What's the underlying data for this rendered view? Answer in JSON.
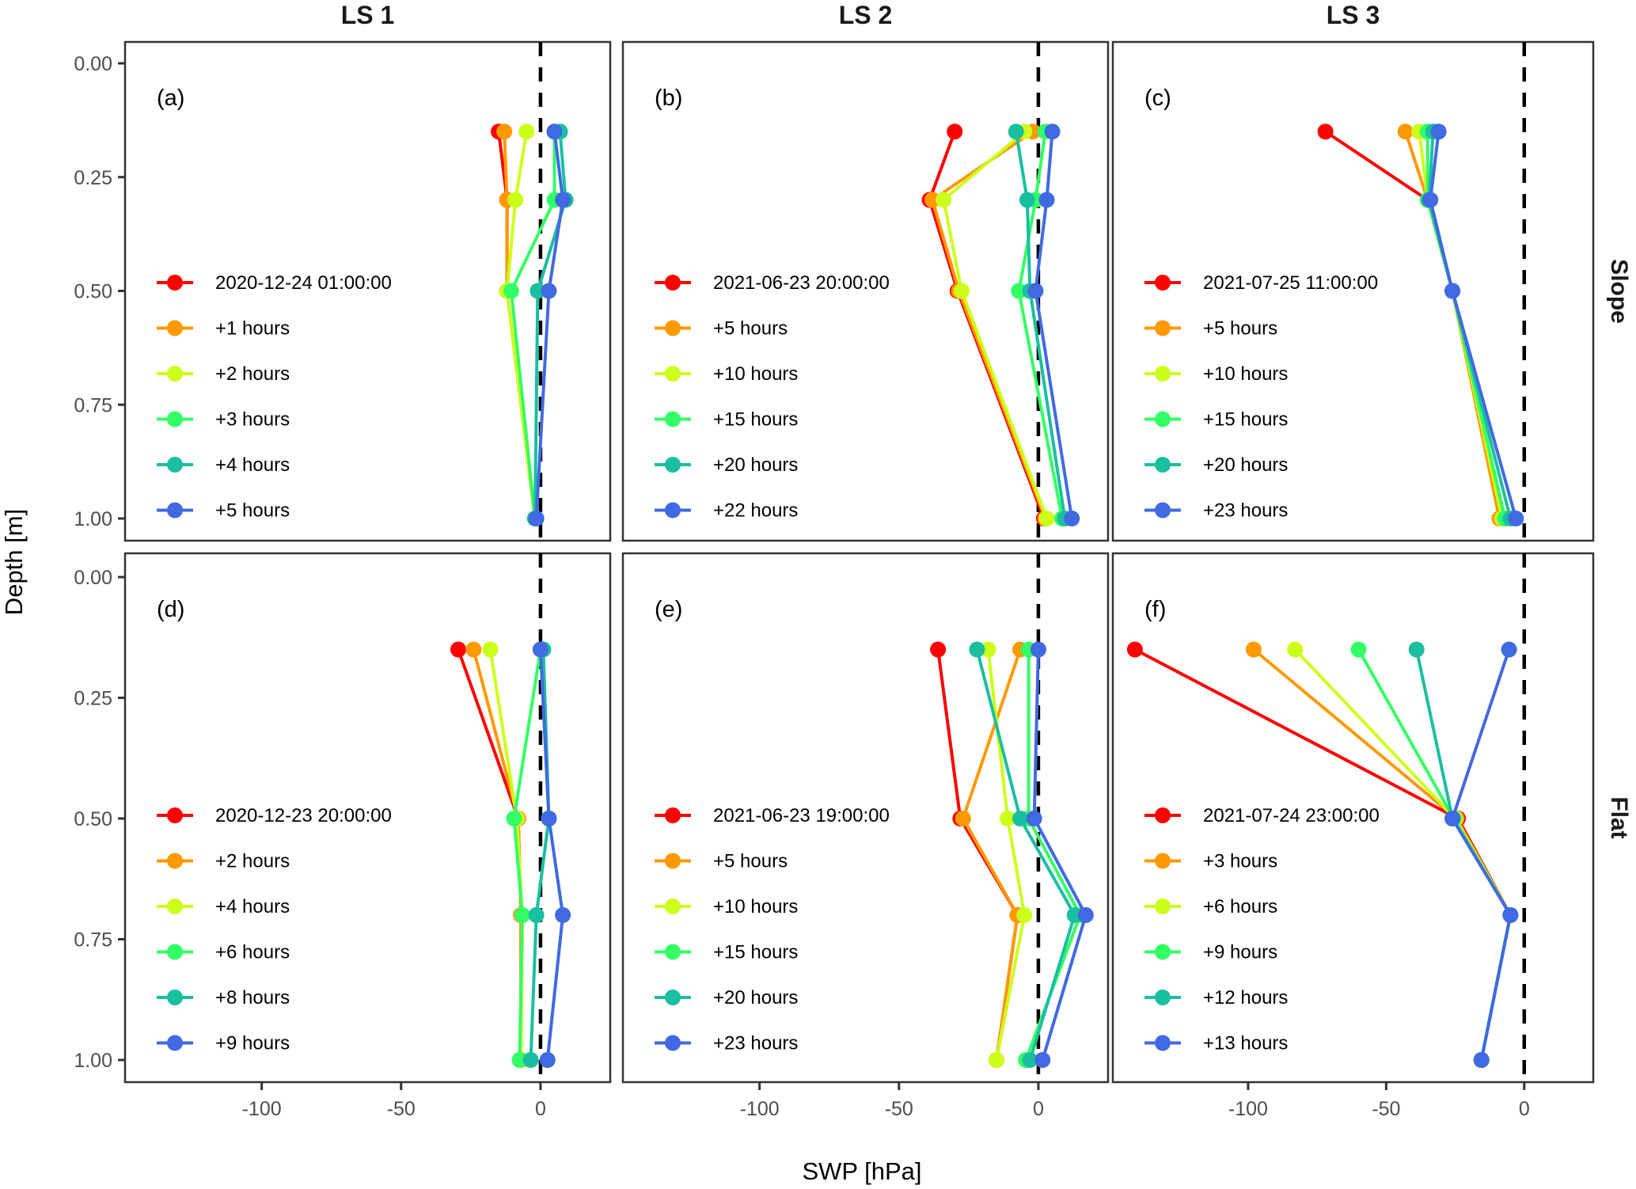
{
  "chart_data": {
    "type": "line",
    "description": "Soil water potential depth profiles, faceted by site (columns) and position (rows)",
    "xlabel": "SWP [hPa]",
    "ylabel": "Depth [m]",
    "xlim": [
      -149,
      25
    ],
    "ylim": [
      1.05,
      -0.05
    ],
    "y_reversed": true,
    "x_ticks": [
      -100,
      -50,
      0
    ],
    "x_tick_labels": [
      "-100",
      "-50",
      "0"
    ],
    "y_ticks": [
      0.0,
      0.25,
      0.5,
      0.75,
      1.0
    ],
    "y_tick_labels": [
      "0.00",
      "0.25",
      "0.50",
      "0.75",
      "1.00"
    ],
    "reference_line": {
      "x": 0,
      "style": "dashed",
      "color": "#000000"
    },
    "grid": false,
    "legend_placement": "inside-left",
    "series_colors": [
      "#FF0000",
      "#FF9900",
      "#CCFF1A",
      "#33FF66",
      "#1ABFA0",
      "#4169E1"
    ],
    "column_titles": [
      "LS 1",
      "LS 2",
      "LS 3"
    ],
    "row_titles": [
      "Slope",
      "Flat"
    ],
    "panels": [
      {
        "tag": "(a)",
        "column": "LS 1",
        "row": "Slope",
        "depths": [
          0.15,
          0.3,
          0.5,
          1.0
        ],
        "series": [
          {
            "name": "2020-12-24 01:00:00",
            "values": [
              -15,
              -12,
              -12,
              -2
            ]
          },
          {
            "name": "+1 hours",
            "values": [
              -13,
              -12,
              -12,
              -2
            ]
          },
          {
            "name": "+2 hours",
            "values": [
              -5,
              -9,
              -12,
              -2
            ]
          },
          {
            "name": "+3 hours",
            "values": [
              5,
              5,
              -10.5,
              -2
            ]
          },
          {
            "name": "+4 hours",
            "values": [
              7,
              9,
              -1,
              -2
            ]
          },
          {
            "name": "+5 hours",
            "values": [
              5,
              8,
              3,
              -1.5
            ]
          }
        ]
      },
      {
        "tag": "(b)",
        "column": "LS 2",
        "row": "Slope",
        "depths": [
          0.15,
          0.3,
          0.5,
          1.0
        ],
        "series": [
          {
            "name": "2021-06-23 20:00:00",
            "values": [
              -30,
              -39,
              -29,
              2
            ]
          },
          {
            "name": "+5 hours",
            "values": [
              -2,
              -38,
              -28.5,
              2.5
            ]
          },
          {
            "name": "+10 hours",
            "values": [
              -5,
              -34,
              -27.5,
              3
            ]
          },
          {
            "name": "+15 hours",
            "values": [
              2.5,
              -1,
              -7,
              8.5
            ]
          },
          {
            "name": "+20 hours",
            "values": [
              -8,
              -4,
              -3,
              9.5
            ]
          },
          {
            "name": "+22 hours",
            "values": [
              5,
              3,
              -1,
              12
            ]
          }
        ]
      },
      {
        "tag": "(c)",
        "column": "LS 3",
        "row": "Slope",
        "depths": [
          0.15,
          0.3,
          0.5,
          1.0
        ],
        "series": [
          {
            "name": "2021-07-25 11:00:00",
            "values": [
              -72,
              -35,
              -26,
              -7
            ]
          },
          {
            "name": "+5 hours",
            "values": [
              -43,
              -35,
              -26,
              -9
            ]
          },
          {
            "name": "+10 hours",
            "values": [
              -38,
              -35,
              -26,
              -8
            ]
          },
          {
            "name": "+15 hours",
            "values": [
              -35,
              -35,
              -26,
              -7
            ]
          },
          {
            "name": "+20 hours",
            "values": [
              -33,
              -34.5,
              -26,
              -5
            ]
          },
          {
            "name": "+23 hours",
            "values": [
              -31,
              -34,
              -26,
              -3
            ]
          }
        ]
      },
      {
        "tag": "(d)",
        "column": "LS 1",
        "row": "Flat",
        "depths": [
          0.15,
          0.5,
          0.7,
          1.0
        ],
        "series": [
          {
            "name": "2020-12-23 20:00:00",
            "values": [
              -29.5,
              -8,
              -7,
              -7
            ]
          },
          {
            "name": "+2 hours",
            "values": [
              -24,
              -8,
              -7,
              -7
            ]
          },
          {
            "name": "+4 hours",
            "values": [
              -18,
              -8.5,
              -6.5,
              -7
            ]
          },
          {
            "name": "+6 hours",
            "values": [
              0,
              -9.5,
              -6.5,
              -7.5
            ]
          },
          {
            "name": "+8 hours",
            "values": [
              1,
              3,
              -1.5,
              -3.5
            ]
          },
          {
            "name": "+9 hours",
            "values": [
              0,
              3,
              8,
              2.5
            ]
          }
        ]
      },
      {
        "tag": "(e)",
        "column": "LS 2",
        "row": "Flat",
        "depths": [
          0.15,
          0.5,
          0.7,
          1.0
        ],
        "series": [
          {
            "name": "2021-06-23 19:00:00",
            "values": [
              -36,
              -28,
              -7.5,
              -15
            ]
          },
          {
            "name": "+5 hours",
            "values": [
              -6.5,
              -27,
              -7.5,
              -15
            ]
          },
          {
            "name": "+10 hours",
            "values": [
              -18,
              -11,
              -5,
              -15
            ]
          },
          {
            "name": "+15 hours",
            "values": [
              -3.5,
              -3.5,
              15,
              -4.5
            ]
          },
          {
            "name": "+20 hours",
            "values": [
              -22,
              -6.5,
              13,
              -3
            ]
          },
          {
            "name": "+23 hours",
            "values": [
              0,
              -1.5,
              17,
              1.5
            ]
          }
        ]
      },
      {
        "tag": "(f)",
        "column": "LS 3",
        "row": "Flat",
        "depths": [
          0.15,
          0.5,
          0.7,
          1.0
        ],
        "series": [
          {
            "name": "2021-07-24 23:00:00",
            "values": [
              -141,
              -24,
              -5,
              -15.5
            ]
          },
          {
            "name": "+3 hours",
            "values": [
              -98,
              -24.5,
              -5,
              -15.5
            ]
          },
          {
            "name": "+6 hours",
            "values": [
              -83,
              -25,
              -5,
              -15.5
            ]
          },
          {
            "name": "+9 hours",
            "values": [
              -60,
              -25.5,
              -5,
              -15.5
            ]
          },
          {
            "name": "+12 hours",
            "values": [
              -39,
              -26,
              -5,
              -15.5
            ]
          },
          {
            "name": "+13 hours",
            "values": [
              -5.5,
              -26,
              -5,
              -15.5
            ]
          }
        ]
      }
    ]
  }
}
